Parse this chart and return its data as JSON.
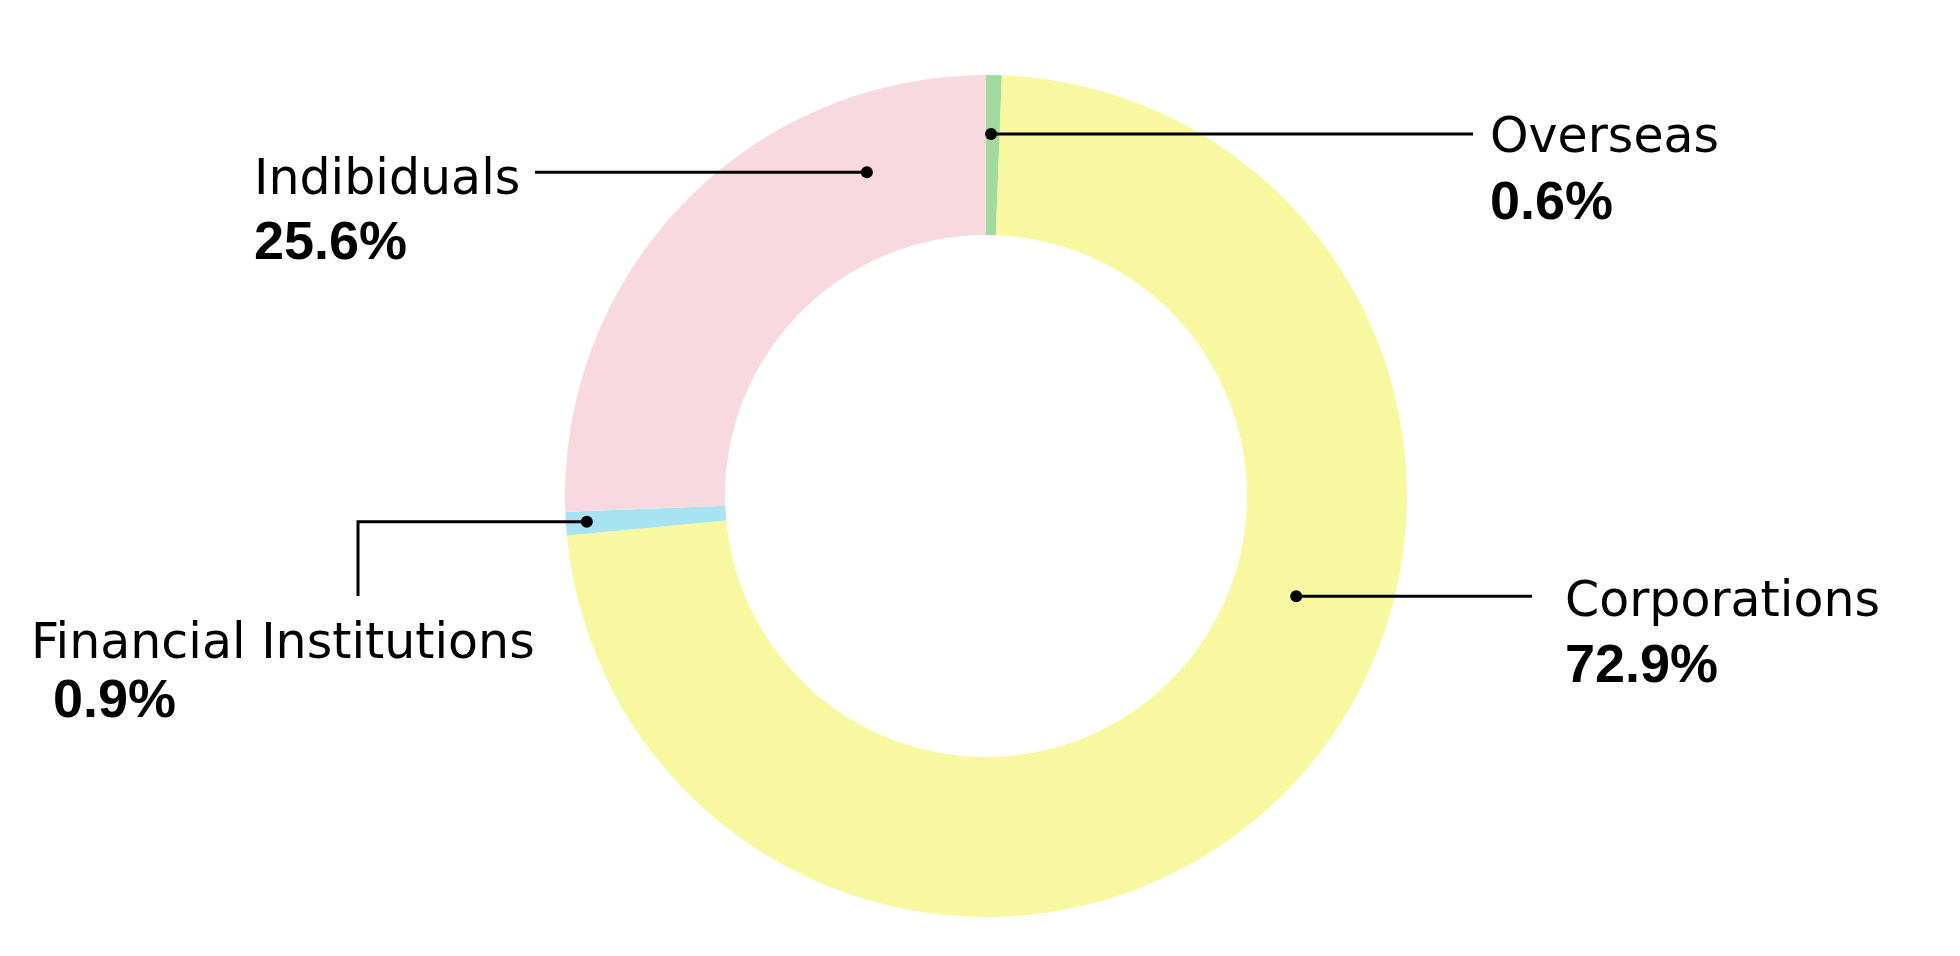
{
  "chart_data": {
    "type": "donut",
    "categories": [
      "Overseas",
      "Corporations",
      "Financial Institutions",
      "Indibiduals"
    ],
    "values": [
      0.6,
      72.9,
      0.9,
      25.6
    ],
    "colors": [
      "#9fdb9f",
      "#f7f89f",
      "#a8e3f1",
      "#f9d9e0"
    ],
    "value_labels": [
      "0.6%",
      "72.9%",
      "0.9%",
      "25.6%"
    ]
  }
}
